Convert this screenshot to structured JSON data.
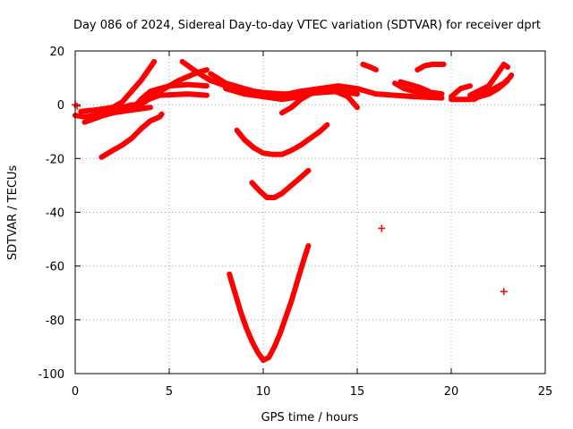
{
  "chart_data": {
    "type": "scatter",
    "title": "Day 086 of 2024, Sidereal Day-to-day VTEC variation (SDTVAR) for receiver dprt",
    "xlabel": "GPS time / hours",
    "ylabel": "SDTVAR / TECUs",
    "xlim": [
      0,
      25
    ],
    "ylim": [
      -100,
      20
    ],
    "xticks": [
      0,
      5,
      10,
      15,
      20,
      25
    ],
    "yticks": [
      -100,
      -80,
      -60,
      -40,
      -20,
      0,
      20
    ],
    "grid": true,
    "color": "#ff0000",
    "series": [
      {
        "values": [
          [
            0.0,
            -4
          ],
          [
            0.5,
            -4.5
          ],
          [
            1.0,
            -4
          ],
          [
            1.5,
            -3
          ],
          [
            2.0,
            -2
          ],
          [
            2.5,
            -1
          ],
          [
            3.0,
            0
          ]
        ]
      },
      {
        "values": [
          [
            0.3,
            -2.5
          ],
          [
            1.0,
            -2
          ],
          [
            2.0,
            -1
          ],
          [
            2.5,
            1
          ],
          [
            3.0,
            5
          ],
          [
            3.5,
            9
          ],
          [
            4.0,
            14
          ],
          [
            4.2,
            16
          ]
        ]
      },
      {
        "values": [
          [
            0.5,
            -6.5
          ],
          [
            1.5,
            -4
          ],
          [
            2.5,
            -2
          ],
          [
            3.5,
            0
          ],
          [
            4.5,
            5
          ],
          [
            5.5,
            9
          ],
          [
            6.5,
            12
          ],
          [
            7.0,
            13
          ]
        ]
      },
      {
        "values": [
          [
            3.0,
            -2
          ],
          [
            3.5,
            2
          ],
          [
            4.0,
            5
          ],
          [
            5.0,
            7
          ],
          [
            6.0,
            7.5
          ],
          [
            7.0,
            7
          ]
        ]
      },
      {
        "values": [
          [
            2.5,
            -2
          ],
          [
            3.5,
            1
          ],
          [
            4.5,
            3.5
          ],
          [
            6.0,
            4
          ],
          [
            7.0,
            3.5
          ]
        ]
      },
      {
        "values": [
          [
            1.0,
            -4.5
          ],
          [
            2.0,
            -3
          ],
          [
            3.5,
            -1.5
          ],
          [
            4.0,
            -1
          ]
        ]
      },
      {
        "values": [
          [
            1.4,
            -19.5
          ],
          [
            2.0,
            -17
          ],
          [
            2.5,
            -15
          ],
          [
            3.0,
            -12.5
          ],
          [
            3.5,
            -9
          ],
          [
            4.0,
            -6
          ],
          [
            4.5,
            -4.5
          ],
          [
            4.6,
            -3.5
          ]
        ]
      },
      {
        "values": [
          [
            5.7,
            16
          ],
          [
            6.5,
            12
          ],
          [
            7.2,
            9
          ],
          [
            8.0,
            7
          ],
          [
            9.0,
            5.5
          ],
          [
            10.0,
            4.5
          ],
          [
            11.0,
            4
          ],
          [
            12.0,
            4
          ],
          [
            13.0,
            4.5
          ],
          [
            14.0,
            5
          ],
          [
            15.0,
            4
          ]
        ]
      },
      {
        "values": [
          [
            7.2,
            11.5
          ],
          [
            8.0,
            8
          ],
          [
            9.0,
            6
          ],
          [
            10.0,
            4
          ],
          [
            11.0,
            3
          ],
          [
            12.0,
            3.5
          ],
          [
            13.0,
            5
          ],
          [
            14.0,
            6
          ],
          [
            14.5,
            4
          ]
        ]
      },
      {
        "values": [
          [
            8.0,
            6
          ],
          [
            9.0,
            4
          ],
          [
            10.0,
            3
          ],
          [
            11.0,
            3.5
          ],
          [
            12.0,
            5
          ],
          [
            13.0,
            6
          ],
          [
            14.0,
            7
          ],
          [
            15.0,
            6
          ],
          [
            16.0,
            4
          ],
          [
            18.0,
            3
          ],
          [
            19.5,
            2.5
          ]
        ]
      },
      {
        "values": [
          [
            10.0,
            3
          ],
          [
            11.0,
            2
          ],
          [
            12.0,
            3
          ],
          [
            13.0,
            5
          ],
          [
            13.5,
            6
          ],
          [
            14.5,
            3
          ],
          [
            15.0,
            -1
          ]
        ]
      },
      {
        "values": [
          [
            11.0,
            -3
          ],
          [
            11.5,
            -1
          ],
          [
            12.0,
            2
          ],
          [
            12.5,
            4
          ],
          [
            13.2,
            6
          ]
        ]
      },
      {
        "values": [
          [
            8.6,
            -9.5
          ],
          [
            9.0,
            -13
          ],
          [
            9.5,
            -16
          ],
          [
            10.0,
            -18
          ],
          [
            10.5,
            -18.5
          ],
          [
            11.0,
            -18.5
          ],
          [
            11.5,
            -17
          ],
          [
            12.0,
            -15
          ],
          [
            12.5,
            -12.5
          ],
          [
            13.0,
            -10
          ],
          [
            13.4,
            -7.5
          ]
        ]
      },
      {
        "values": [
          [
            9.4,
            -29
          ],
          [
            9.8,
            -32
          ],
          [
            10.2,
            -34.5
          ],
          [
            10.6,
            -34.5
          ],
          [
            11.0,
            -33
          ],
          [
            11.5,
            -30
          ],
          [
            12.0,
            -27
          ],
          [
            12.4,
            -24.5
          ]
        ]
      },
      {
        "values": [
          [
            8.2,
            -63
          ],
          [
            8.5,
            -70
          ],
          [
            8.8,
            -77
          ],
          [
            9.1,
            -83
          ],
          [
            9.4,
            -88
          ],
          [
            9.7,
            -92
          ],
          [
            10.0,
            -95
          ],
          [
            10.3,
            -94
          ],
          [
            10.6,
            -90
          ],
          [
            10.9,
            -85
          ],
          [
            11.2,
            -79
          ],
          [
            11.5,
            -73
          ],
          [
            11.8,
            -66
          ],
          [
            12.1,
            -59
          ],
          [
            12.4,
            -52.5
          ]
        ]
      },
      {
        "values": [
          [
            15.3,
            15
          ],
          [
            15.7,
            14
          ],
          [
            16.0,
            13
          ]
        ]
      },
      {
        "values": [
          [
            17.0,
            8
          ],
          [
            17.5,
            6
          ],
          [
            18.0,
            5
          ],
          [
            19.0,
            4.5
          ],
          [
            19.5,
            4
          ]
        ]
      },
      {
        "values": [
          [
            17.3,
            8.5
          ],
          [
            17.8,
            7.5
          ],
          [
            18.3,
            6.5
          ],
          [
            18.8,
            5
          ]
        ]
      },
      {
        "values": [
          [
            18.2,
            13
          ],
          [
            18.6,
            14.5
          ],
          [
            19.0,
            15
          ],
          [
            19.6,
            15
          ]
        ]
      },
      {
        "values": [
          [
            20.0,
            2
          ],
          [
            21.0,
            2
          ],
          [
            22.0,
            4
          ],
          [
            22.5,
            6
          ],
          [
            23.0,
            9
          ]
        ]
      },
      {
        "values": [
          [
            20.0,
            3
          ],
          [
            20.5,
            6
          ],
          [
            21.0,
            7
          ]
        ]
      },
      {
        "values": [
          [
            21.2,
            2
          ],
          [
            22.0,
            5
          ],
          [
            22.8,
            8
          ],
          [
            23.1,
            10
          ],
          [
            23.2,
            11
          ]
        ]
      },
      {
        "values": [
          [
            21.0,
            3.5
          ],
          [
            22.0,
            7
          ],
          [
            22.5,
            12
          ],
          [
            22.8,
            15
          ],
          [
            23.0,
            14
          ]
        ]
      },
      {
        "values": [
          [
            0.0,
            0
          ],
          [
            0.1,
            -0.5
          ]
        ]
      },
      {
        "values": [
          [
            16.3,
            -46
          ]
        ]
      },
      {
        "values": [
          [
            22.8,
            -69.5
          ]
        ]
      }
    ]
  }
}
